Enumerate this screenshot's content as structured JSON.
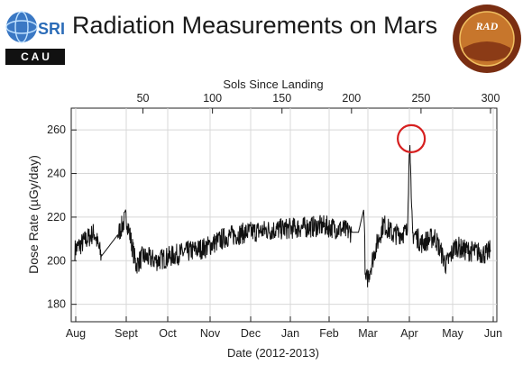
{
  "header": {
    "title": "Radiation Measurements on Mars",
    "logo_left": {
      "text_top": "SRI",
      "text_bottom": "C A U",
      "icon": "globe-icon"
    },
    "logo_right": {
      "text": "RAD",
      "icon": "mission-patch-icon"
    }
  },
  "chart_data": {
    "type": "line",
    "xlabel": "Date (2012-2013)",
    "ylabel": "Dose Rate (µGy/day)",
    "top_axis_label": "Sols Since Landing",
    "x_categories": [
      "Aug",
      "Sept",
      "Oct",
      "Nov",
      "Dec",
      "Jan",
      "Feb",
      "Mar",
      "Apr",
      "May",
      "Jun"
    ],
    "top_ticks": [
      50,
      100,
      150,
      200,
      250,
      300
    ],
    "ylim": [
      172,
      270
    ],
    "yticks": [
      180,
      200,
      220,
      240,
      260
    ],
    "sol_range": [
      1,
      300
    ],
    "grid": true,
    "series": [
      {
        "sol": [
          1,
          15,
          20,
          32,
          38,
          45,
          50,
          60,
          75,
          95,
          110,
          125,
          140,
          160,
          180,
          195,
          200,
          205,
          209,
          210,
          212,
          217,
          223,
          230,
          240,
          242,
          243,
          244,
          246,
          250,
          260,
          268,
          275,
          280,
          290,
          297,
          300
        ],
        "dose": [
          205,
          213,
          202,
          212,
          220,
          198,
          202,
          200,
          203,
          206,
          211,
          213,
          214,
          215,
          216,
          214,
          213,
          213,
          224,
          190,
          193,
          205,
          217,
          212,
          213,
          258,
          225,
          212,
          212,
          208,
          211,
          198,
          207,
          205,
          204,
          203,
          205
        ],
        "noise": 5
      }
    ],
    "annotations": [
      {
        "type": "circle",
        "sol": 243,
        "dose": 256,
        "color": "#d62020"
      }
    ]
  }
}
